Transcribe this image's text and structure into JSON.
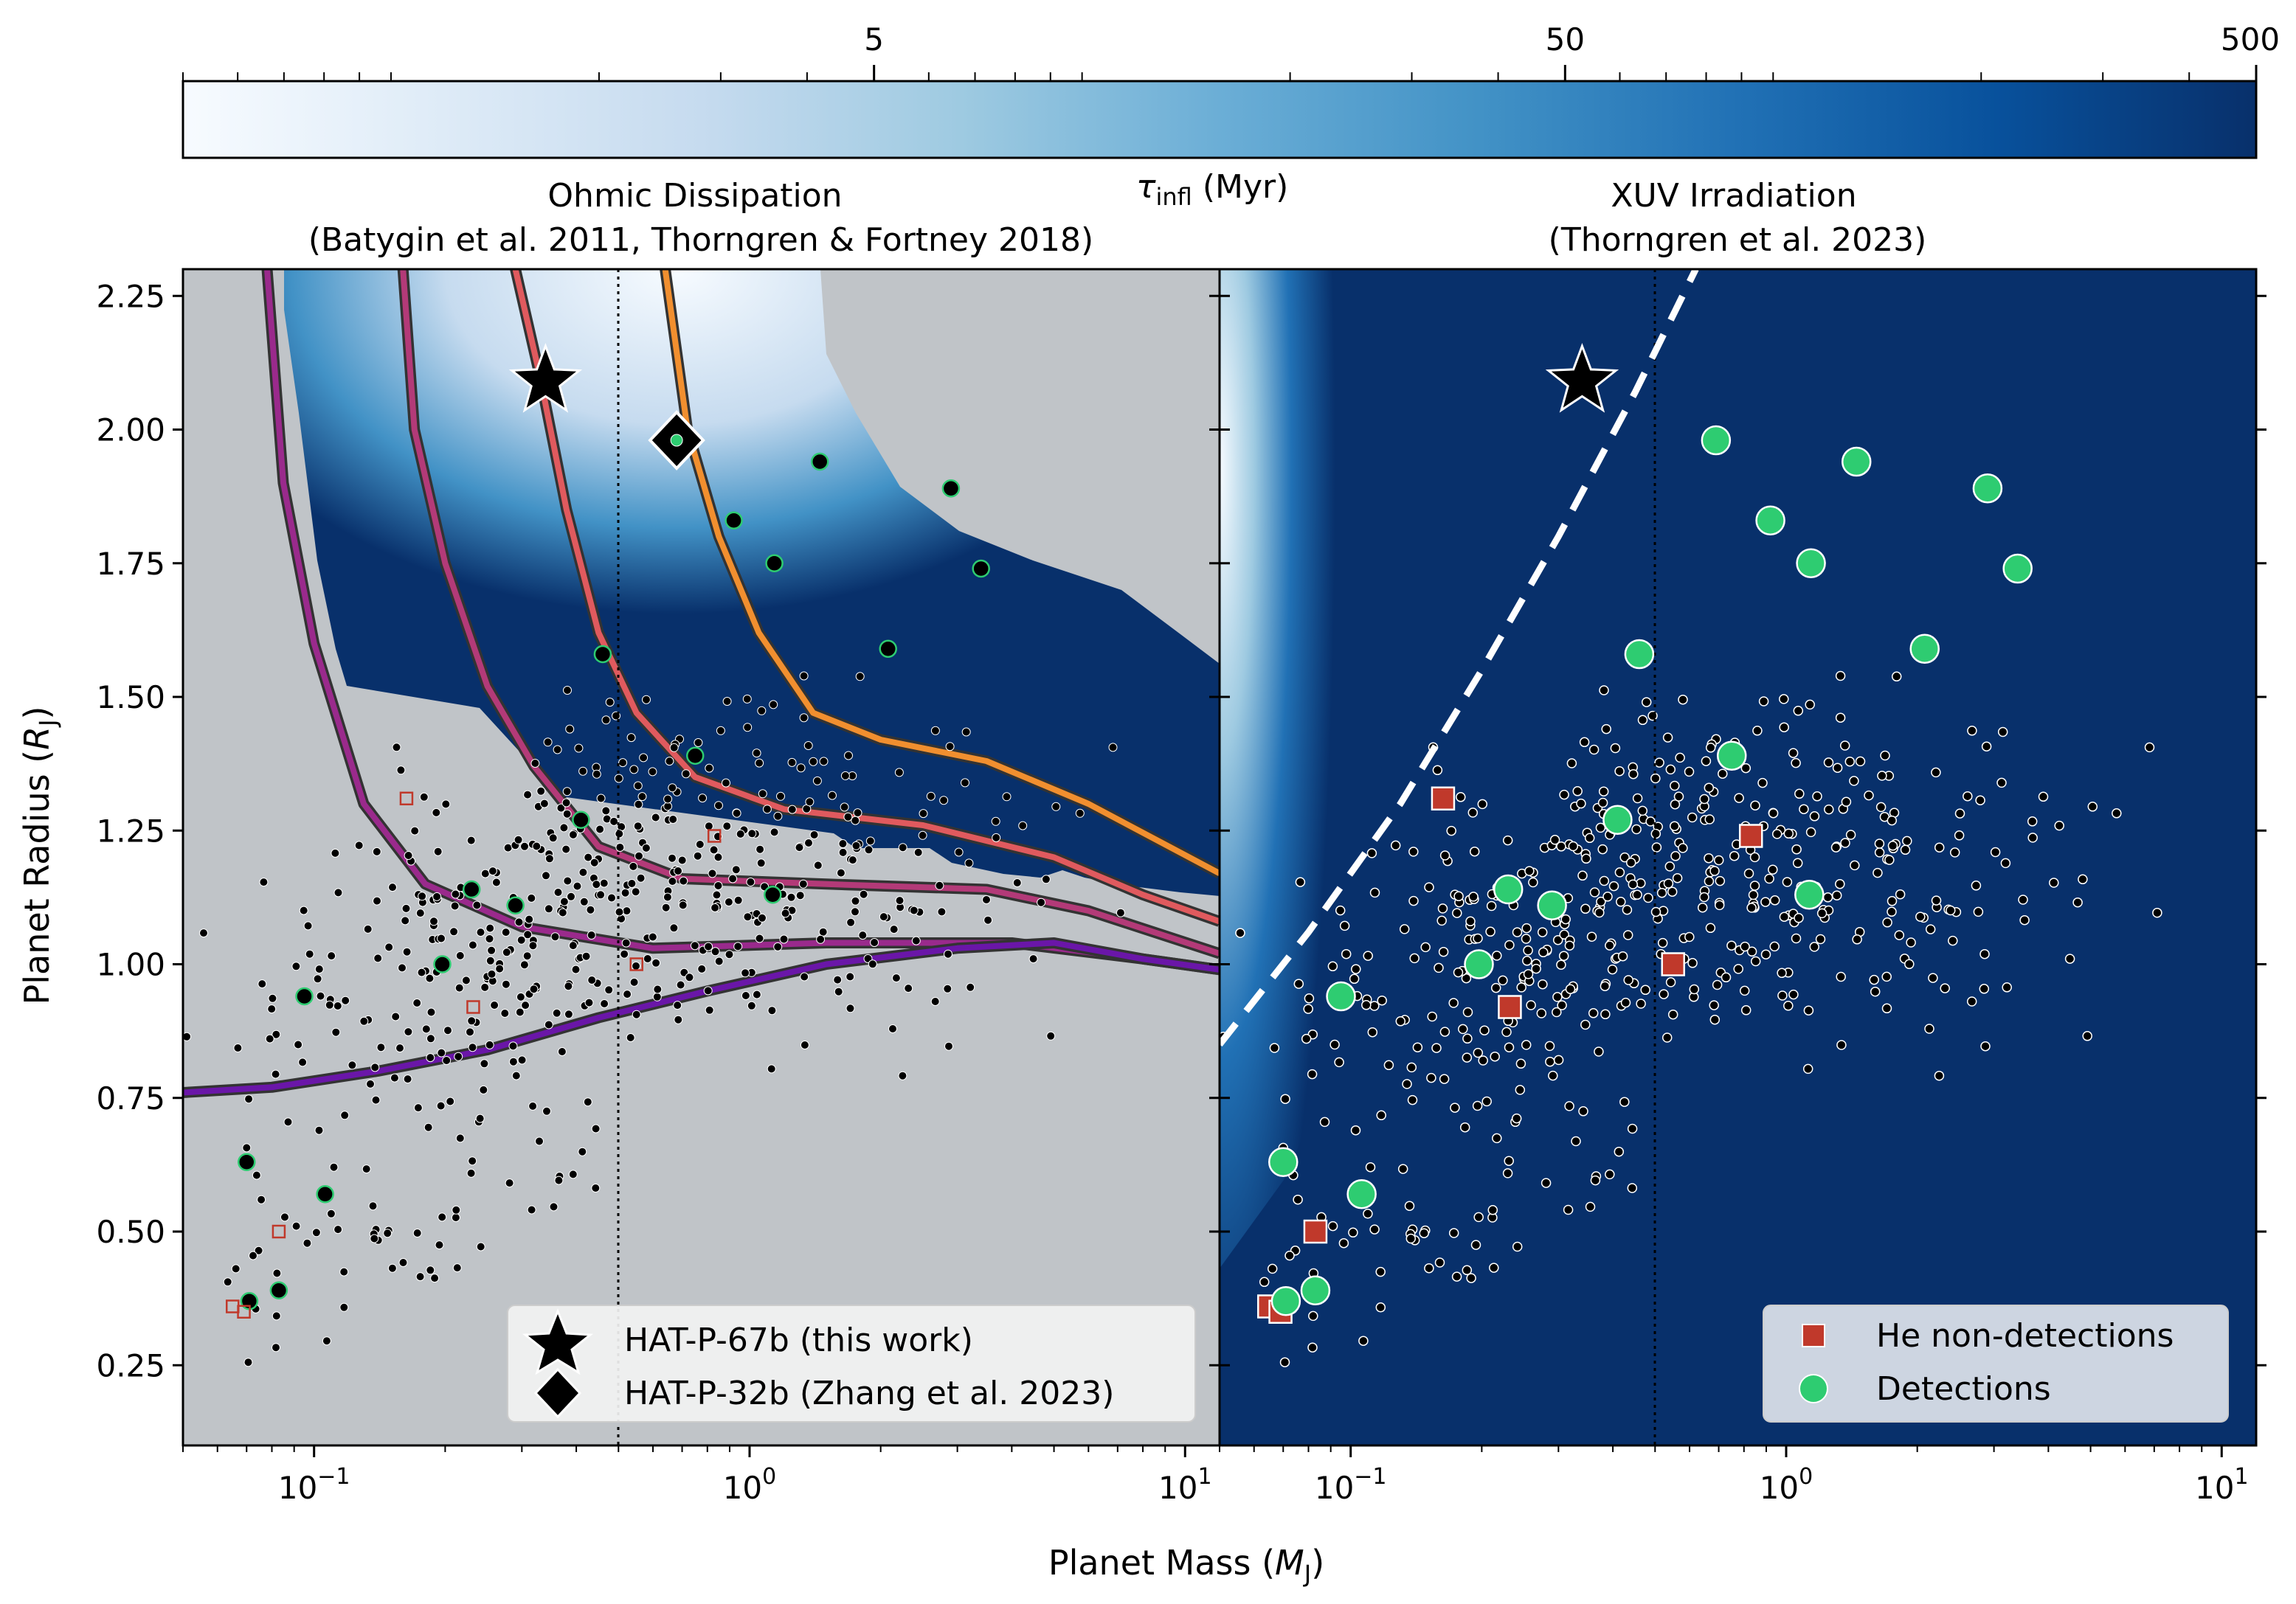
{
  "colorbar": {
    "label": "τinfl (Myr)",
    "label_main": "τ",
    "label_sub": "infl",
    "label_rest": " (Myr)",
    "scale": "log",
    "range": [
      0.5,
      500
    ],
    "ticks": [
      {
        "value": 5,
        "label": "5"
      },
      {
        "value": 50,
        "label": "50"
      },
      {
        "value": 500,
        "label": "500"
      }
    ],
    "colors": [
      "#f7fbff",
      "#deebf7",
      "#c6dbef",
      "#9ecae1",
      "#6baed6",
      "#4292c6",
      "#2171b5",
      "#08519c",
      "#08306b"
    ]
  },
  "panels": {
    "left": {
      "title_line1": "Ohmic Dissipation",
      "title_line2": "(Batygin et al. 2011, Thorngren & Fortney 2018)"
    },
    "right": {
      "title_line1": "XUV Irradiation",
      "title_line2": "(Thorngren et al. 2023)"
    }
  },
  "axes": {
    "xlabel_main": "Planet Mass (",
    "xlabel_sym": "M",
    "xlabel_sub": "J",
    "xlabel_end": ")",
    "ylabel_main": "Planet Radius (",
    "ylabel_sym": "R",
    "ylabel_sub": "J",
    "ylabel_end": ")",
    "xscale": "log",
    "xlim": [
      0.05,
      12
    ],
    "ylim": [
      0.1,
      2.3
    ],
    "xticks": [
      {
        "value": 0.1,
        "base": "10",
        "exp": "−1"
      },
      {
        "value": 1,
        "base": "10",
        "exp": "0"
      },
      {
        "value": 10,
        "base": "10",
        "exp": "1"
      }
    ],
    "yticks": [
      "0.25",
      "0.50",
      "0.75",
      "1.00",
      "1.25",
      "1.50",
      "1.75",
      "2.00",
      "2.25"
    ],
    "vline_x": 0.5
  },
  "legend_left": {
    "items": [
      {
        "marker": "star",
        "label": "HAT-P-67b (this work)"
      },
      {
        "marker": "diamond",
        "label": "HAT-P-32b (Zhang et al. 2023)"
      }
    ]
  },
  "legend_right": {
    "items": [
      {
        "marker": "square",
        "label": "He non-detections"
      },
      {
        "marker": "circle",
        "label": "Detections"
      }
    ]
  },
  "chart_data": {
    "type": "scatter",
    "highlighted": [
      {
        "name": "HAT-P-67b",
        "mass": 0.34,
        "radius": 2.09,
        "marker": "star"
      },
      {
        "name": "HAT-P-32b",
        "mass": 0.68,
        "radius": 1.98,
        "marker": "diamond"
      }
    ],
    "he_detections": [
      [
        0.69,
        1.98
      ],
      [
        1.45,
        1.94
      ],
      [
        2.9,
        1.89
      ],
      [
        0.92,
        1.83
      ],
      [
        1.14,
        1.75
      ],
      [
        3.4,
        1.74
      ],
      [
        0.46,
        1.58
      ],
      [
        2.08,
        1.59
      ],
      [
        0.75,
        1.39
      ],
      [
        0.41,
        1.27
      ],
      [
        0.23,
        1.14
      ],
      [
        0.29,
        1.11
      ],
      [
        1.13,
        1.13
      ],
      [
        0.197,
        1.0
      ],
      [
        0.095,
        0.94
      ],
      [
        0.07,
        0.63
      ],
      [
        0.106,
        0.57
      ],
      [
        0.071,
        0.37
      ],
      [
        0.083,
        0.39
      ]
    ],
    "he_non_detections": [
      [
        0.163,
        1.31
      ],
      [
        0.83,
        1.24
      ],
      [
        0.55,
        1.0
      ],
      [
        0.232,
        0.92
      ],
      [
        0.083,
        0.5
      ],
      [
        0.065,
        0.36
      ],
      [
        0.069,
        0.35
      ]
    ],
    "ohmic_contours": [
      {
        "color": "#f18f2f",
        "points": [
          [
            0.64,
            2.3
          ],
          [
            0.72,
            2.0
          ],
          [
            0.85,
            1.8
          ],
          [
            1.05,
            1.62
          ],
          [
            1.4,
            1.47
          ],
          [
            2.0,
            1.42
          ],
          [
            3.5,
            1.38
          ],
          [
            6.0,
            1.3
          ],
          [
            12,
            1.17
          ]
        ]
      },
      {
        "color": "#e05a5e",
        "points": [
          [
            0.29,
            2.3
          ],
          [
            0.33,
            2.1
          ],
          [
            0.38,
            1.85
          ],
          [
            0.45,
            1.62
          ],
          [
            0.55,
            1.47
          ],
          [
            0.75,
            1.35
          ],
          [
            1.2,
            1.29
          ],
          [
            2.5,
            1.26
          ],
          [
            5.0,
            1.2
          ],
          [
            8.0,
            1.13
          ],
          [
            12,
            1.08
          ]
        ]
      },
      {
        "color": "#b33a78",
        "points": [
          [
            0.16,
            2.3
          ],
          [
            0.17,
            2.0
          ],
          [
            0.2,
            1.75
          ],
          [
            0.25,
            1.52
          ],
          [
            0.32,
            1.37
          ],
          [
            0.45,
            1.22
          ],
          [
            0.7,
            1.16
          ],
          [
            1.5,
            1.15
          ],
          [
            3.5,
            1.14
          ],
          [
            6.0,
            1.1
          ],
          [
            12,
            1.02
          ]
        ]
      },
      {
        "color": "#9a2a8c",
        "points": [
          [
            0.078,
            2.3
          ],
          [
            0.085,
            1.9
          ],
          [
            0.1,
            1.6
          ],
          [
            0.13,
            1.3
          ],
          [
            0.18,
            1.15
          ],
          [
            0.3,
            1.07
          ],
          [
            0.6,
            1.03
          ],
          [
            1.5,
            1.04
          ],
          [
            4.0,
            1.04
          ],
          [
            8.0,
            1.01
          ],
          [
            12,
            0.99
          ]
        ]
      },
      {
        "color": "#6a16a8",
        "points": [
          [
            0.05,
            0.76
          ],
          [
            0.08,
            0.77
          ],
          [
            0.14,
            0.8
          ],
          [
            0.25,
            0.84
          ],
          [
            0.45,
            0.9
          ],
          [
            0.8,
            0.95
          ],
          [
            1.5,
            1.0
          ],
          [
            3.0,
            1.03
          ],
          [
            5.0,
            1.04
          ],
          [
            8.0,
            1.01
          ],
          [
            12,
            0.99
          ]
        ]
      }
    ],
    "xuv_dashed_boundary": [
      [
        0.05,
        0.85
      ],
      [
        0.08,
        1.06
      ],
      [
        0.13,
        1.3
      ],
      [
        0.2,
        1.55
      ],
      [
        0.3,
        1.8
      ],
      [
        0.45,
        2.07
      ],
      [
        0.62,
        2.3
      ]
    ]
  }
}
